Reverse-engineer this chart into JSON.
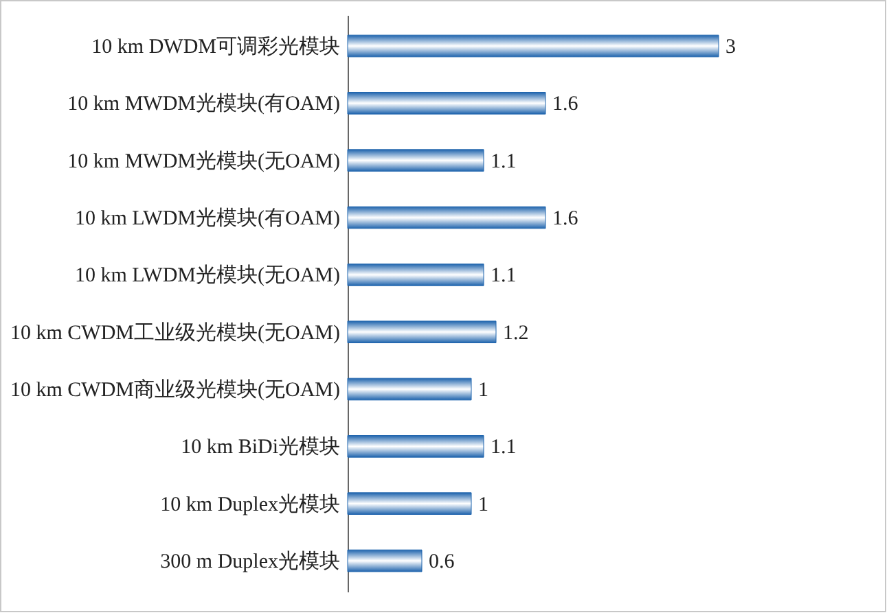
{
  "chart_data": {
    "type": "bar",
    "orientation": "horizontal",
    "data_labels": true,
    "categories": [
      "10 km DWDM可调彩光模块",
      "10 km MWDM光模块(有OAM)",
      "10 km MWDM光模块(无OAM)",
      "10 km LWDM光模块(有OAM)",
      "10 km LWDM光模块(无OAM)",
      "10 km CWDM工业级光模块(无OAM)",
      "10 km CWDM商业级光模块(无OAM)",
      "10 km BiDi光模块",
      "10 km Duplex光模块",
      "300 m Duplex光模块"
    ],
    "values": [
      3,
      1.6,
      1.1,
      1.6,
      1.1,
      1.2,
      1,
      1.1,
      1,
      0.6
    ],
    "color": "#1f64ad"
  }
}
